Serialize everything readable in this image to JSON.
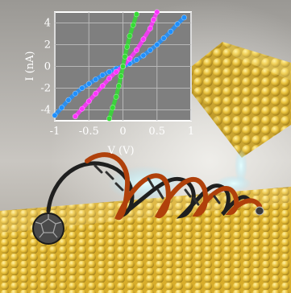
{
  "chart_data": {
    "type": "scatter",
    "xlabel": "V (V)",
    "ylabel": "I (nA)",
    "xlim": [
      -1,
      1
    ],
    "ylim": [
      -5,
      5
    ],
    "xticks": [
      "-1",
      "-0.5",
      "0",
      "0.5",
      "1"
    ],
    "yticks": [
      "4",
      "2",
      "0",
      "-2",
      "-4"
    ],
    "grid": true,
    "series": [
      {
        "color": "#1e90ff",
        "points": [
          [
            -1.0,
            -4.5
          ],
          [
            -0.9,
            -3.8
          ],
          [
            -0.8,
            -3.1
          ],
          [
            -0.7,
            -2.5
          ],
          [
            -0.6,
            -2.0
          ],
          [
            -0.5,
            -1.6
          ],
          [
            -0.4,
            -1.2
          ],
          [
            -0.3,
            -0.8
          ],
          [
            -0.2,
            -0.5
          ],
          [
            -0.1,
            -0.2
          ],
          [
            0.0,
            0.0
          ],
          [
            0.1,
            0.25
          ],
          [
            0.2,
            0.6
          ],
          [
            0.3,
            1.0
          ],
          [
            0.4,
            1.5
          ],
          [
            0.5,
            2.0
          ],
          [
            0.6,
            2.6
          ],
          [
            0.7,
            3.2
          ],
          [
            0.8,
            3.9
          ],
          [
            0.9,
            4.5
          ]
        ]
      },
      {
        "color": "#ff33ff",
        "points": [
          [
            -0.7,
            -4.6
          ],
          [
            -0.6,
            -3.9
          ],
          [
            -0.5,
            -3.2
          ],
          [
            -0.4,
            -2.5
          ],
          [
            -0.3,
            -1.8
          ],
          [
            -0.2,
            -1.1
          ],
          [
            -0.1,
            -0.5
          ],
          [
            0.0,
            0.0
          ],
          [
            0.1,
            0.7
          ],
          [
            0.2,
            1.5
          ],
          [
            0.3,
            2.5
          ],
          [
            0.4,
            3.5
          ],
          [
            0.45,
            4.3
          ],
          [
            0.5,
            5.0
          ]
        ]
      },
      {
        "color": "#33dd33",
        "points": [
          [
            -0.2,
            -4.8
          ],
          [
            -0.15,
            -3.8
          ],
          [
            -0.1,
            -2.8
          ],
          [
            -0.06,
            -1.8
          ],
          [
            -0.03,
            -0.9
          ],
          [
            0.0,
            0.0
          ],
          [
            0.03,
            0.9
          ],
          [
            0.06,
            1.8
          ],
          [
            0.1,
            2.8
          ],
          [
            0.15,
            3.8
          ],
          [
            0.2,
            4.8
          ]
        ]
      }
    ]
  }
}
